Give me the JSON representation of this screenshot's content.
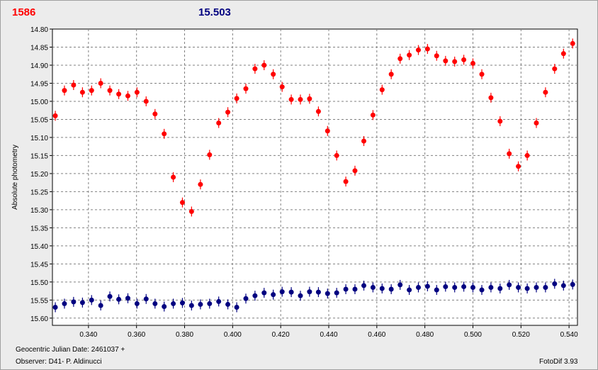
{
  "header": {
    "left_value": "1586",
    "right_value": "15.503"
  },
  "footer": {
    "date_label": "Geocentric Julian Date: 2461037 +",
    "observer": "Observer: D41- P. Aldinucci",
    "software": "FotoDif 3.93"
  },
  "colors": {
    "series_target": "#ff0000",
    "series_comparison": "#000080",
    "grid": "#808080",
    "plot_bg": "#ffffff",
    "frame_bg": "#ececec"
  },
  "chart_data": {
    "type": "scatter",
    "xlabel": "",
    "ylabel": "Absolute photometry",
    "xlim": [
      0.325,
      0.5435
    ],
    "ylim": [
      14.8,
      15.62
    ],
    "y_inverted": true,
    "grid": true,
    "error_bars": true,
    "x_ticks": [
      0.34,
      0.36,
      0.38,
      0.4,
      0.42,
      0.44,
      0.46,
      0.48,
      0.5,
      0.52,
      0.54
    ],
    "x_tick_labels": [
      "0.340",
      "0.360",
      "0.380",
      "0.400",
      "0.420",
      "0.440",
      "0.460",
      "0.480",
      "0.500",
      "0.520",
      "0.540"
    ],
    "y_ticks": [
      14.8,
      14.85,
      14.9,
      14.95,
      15.0,
      15.05,
      15.1,
      15.15,
      15.2,
      15.25,
      15.3,
      15.35,
      15.4,
      15.45,
      15.5,
      15.55,
      15.6
    ],
    "y_tick_labels": [
      "14.80",
      "14.85",
      "14.90",
      "14.95",
      "15.00",
      "15.05",
      "15.10",
      "15.15",
      "15.20",
      "15.25",
      "15.30",
      "15.35",
      "15.40",
      "15.45",
      "15.50",
      "15.55",
      "15.60"
    ],
    "x": [
      0.3262,
      0.33,
      0.3338,
      0.3375,
      0.3413,
      0.3451,
      0.3489,
      0.3526,
      0.3564,
      0.3602,
      0.364,
      0.3677,
      0.3715,
      0.3753,
      0.3791,
      0.3829,
      0.3866,
      0.3904,
      0.3942,
      0.398,
      0.4017,
      0.4055,
      0.4093,
      0.4131,
      0.4169,
      0.4206,
      0.4244,
      0.4282,
      0.432,
      0.4357,
      0.4395,
      0.4433,
      0.4471,
      0.4509,
      0.4546,
      0.4584,
      0.4622,
      0.466,
      0.4697,
      0.4735,
      0.4773,
      0.4811,
      0.4849,
      0.4886,
      0.4924,
      0.4962,
      0.5,
      0.5037,
      0.5075,
      0.5113,
      0.5151,
      0.5189,
      0.5226,
      0.5264,
      0.5302,
      0.534,
      0.5377,
      0.5415
    ],
    "series": [
      {
        "values": [
          15.04,
          14.97,
          14.955,
          14.975,
          14.97,
          14.95,
          14.97,
          14.98,
          14.985,
          14.975,
          15.0,
          15.035,
          15.09,
          15.21,
          15.28,
          15.305,
          15.23,
          15.148,
          15.06,
          15.03,
          14.992,
          14.965,
          14.91,
          14.9,
          14.925,
          14.96,
          14.995,
          14.995,
          14.993,
          15.028,
          15.082,
          15.15,
          15.222,
          15.192,
          15.11,
          15.038,
          14.968,
          14.925,
          14.882,
          14.872,
          14.858,
          14.855,
          14.874,
          14.888,
          14.89,
          14.885,
          14.895,
          14.925,
          14.99,
          15.055,
          15.145,
          15.18,
          15.15,
          15.06,
          14.975,
          14.91,
          14.868,
          14.84
        ]
      },
      {
        "values": [
          15.57,
          15.56,
          15.555,
          15.557,
          15.55,
          15.565,
          15.54,
          15.548,
          15.545,
          15.56,
          15.547,
          15.56,
          15.568,
          15.56,
          15.558,
          15.565,
          15.562,
          15.56,
          15.554,
          15.562,
          15.57,
          15.546,
          15.538,
          15.53,
          15.535,
          15.527,
          15.528,
          15.538,
          15.527,
          15.528,
          15.532,
          15.53,
          15.52,
          15.52,
          15.51,
          15.515,
          15.518,
          15.52,
          15.508,
          15.522,
          15.515,
          15.512,
          15.522,
          15.513,
          15.515,
          15.513,
          15.515,
          15.522,
          15.515,
          15.518,
          15.508,
          15.515,
          15.518,
          15.515,
          15.515,
          15.505,
          15.51,
          15.507
        ]
      }
    ]
  }
}
